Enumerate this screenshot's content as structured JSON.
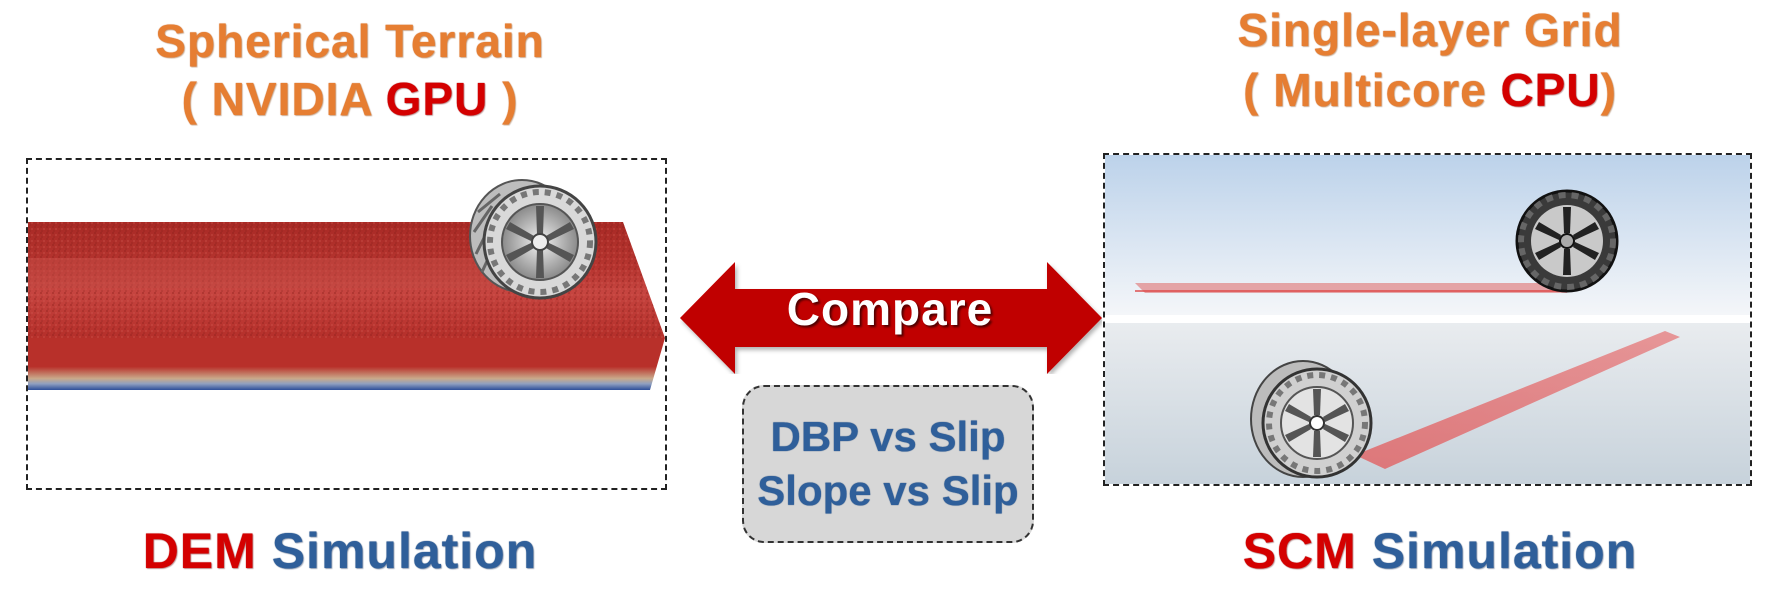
{
  "left": {
    "title_line1": "Spherical Terrain",
    "title_line2_open": "( NVIDIA ",
    "title_line2_accent": "GPU",
    "title_line2_close": " )",
    "caption_accent": "DEM",
    "caption_rest": " Simulation"
  },
  "right": {
    "title_line1": "Single-layer Grid",
    "title_line2_open": "( Multicore ",
    "title_line2_accent": "CPU",
    "title_line2_close": ")",
    "caption_accent": "SCM",
    "caption_rest": " Simulation"
  },
  "center": {
    "arrow_label": "Compare",
    "metrics": [
      "DBP vs Slip",
      "Slope vs Slip"
    ]
  },
  "colors": {
    "title_orange": "#E67E32",
    "accent_red": "#D40000",
    "caption_blue": "#2F5F9A",
    "arrow_red": "#C00000",
    "terrain_red": "#B8302A",
    "terrain_blue": "#2D4F9A",
    "metric_box_gray": "#D7D7D7"
  },
  "icons": {
    "wheel": "wheel-icon",
    "arrow": "double-arrow-icon"
  }
}
